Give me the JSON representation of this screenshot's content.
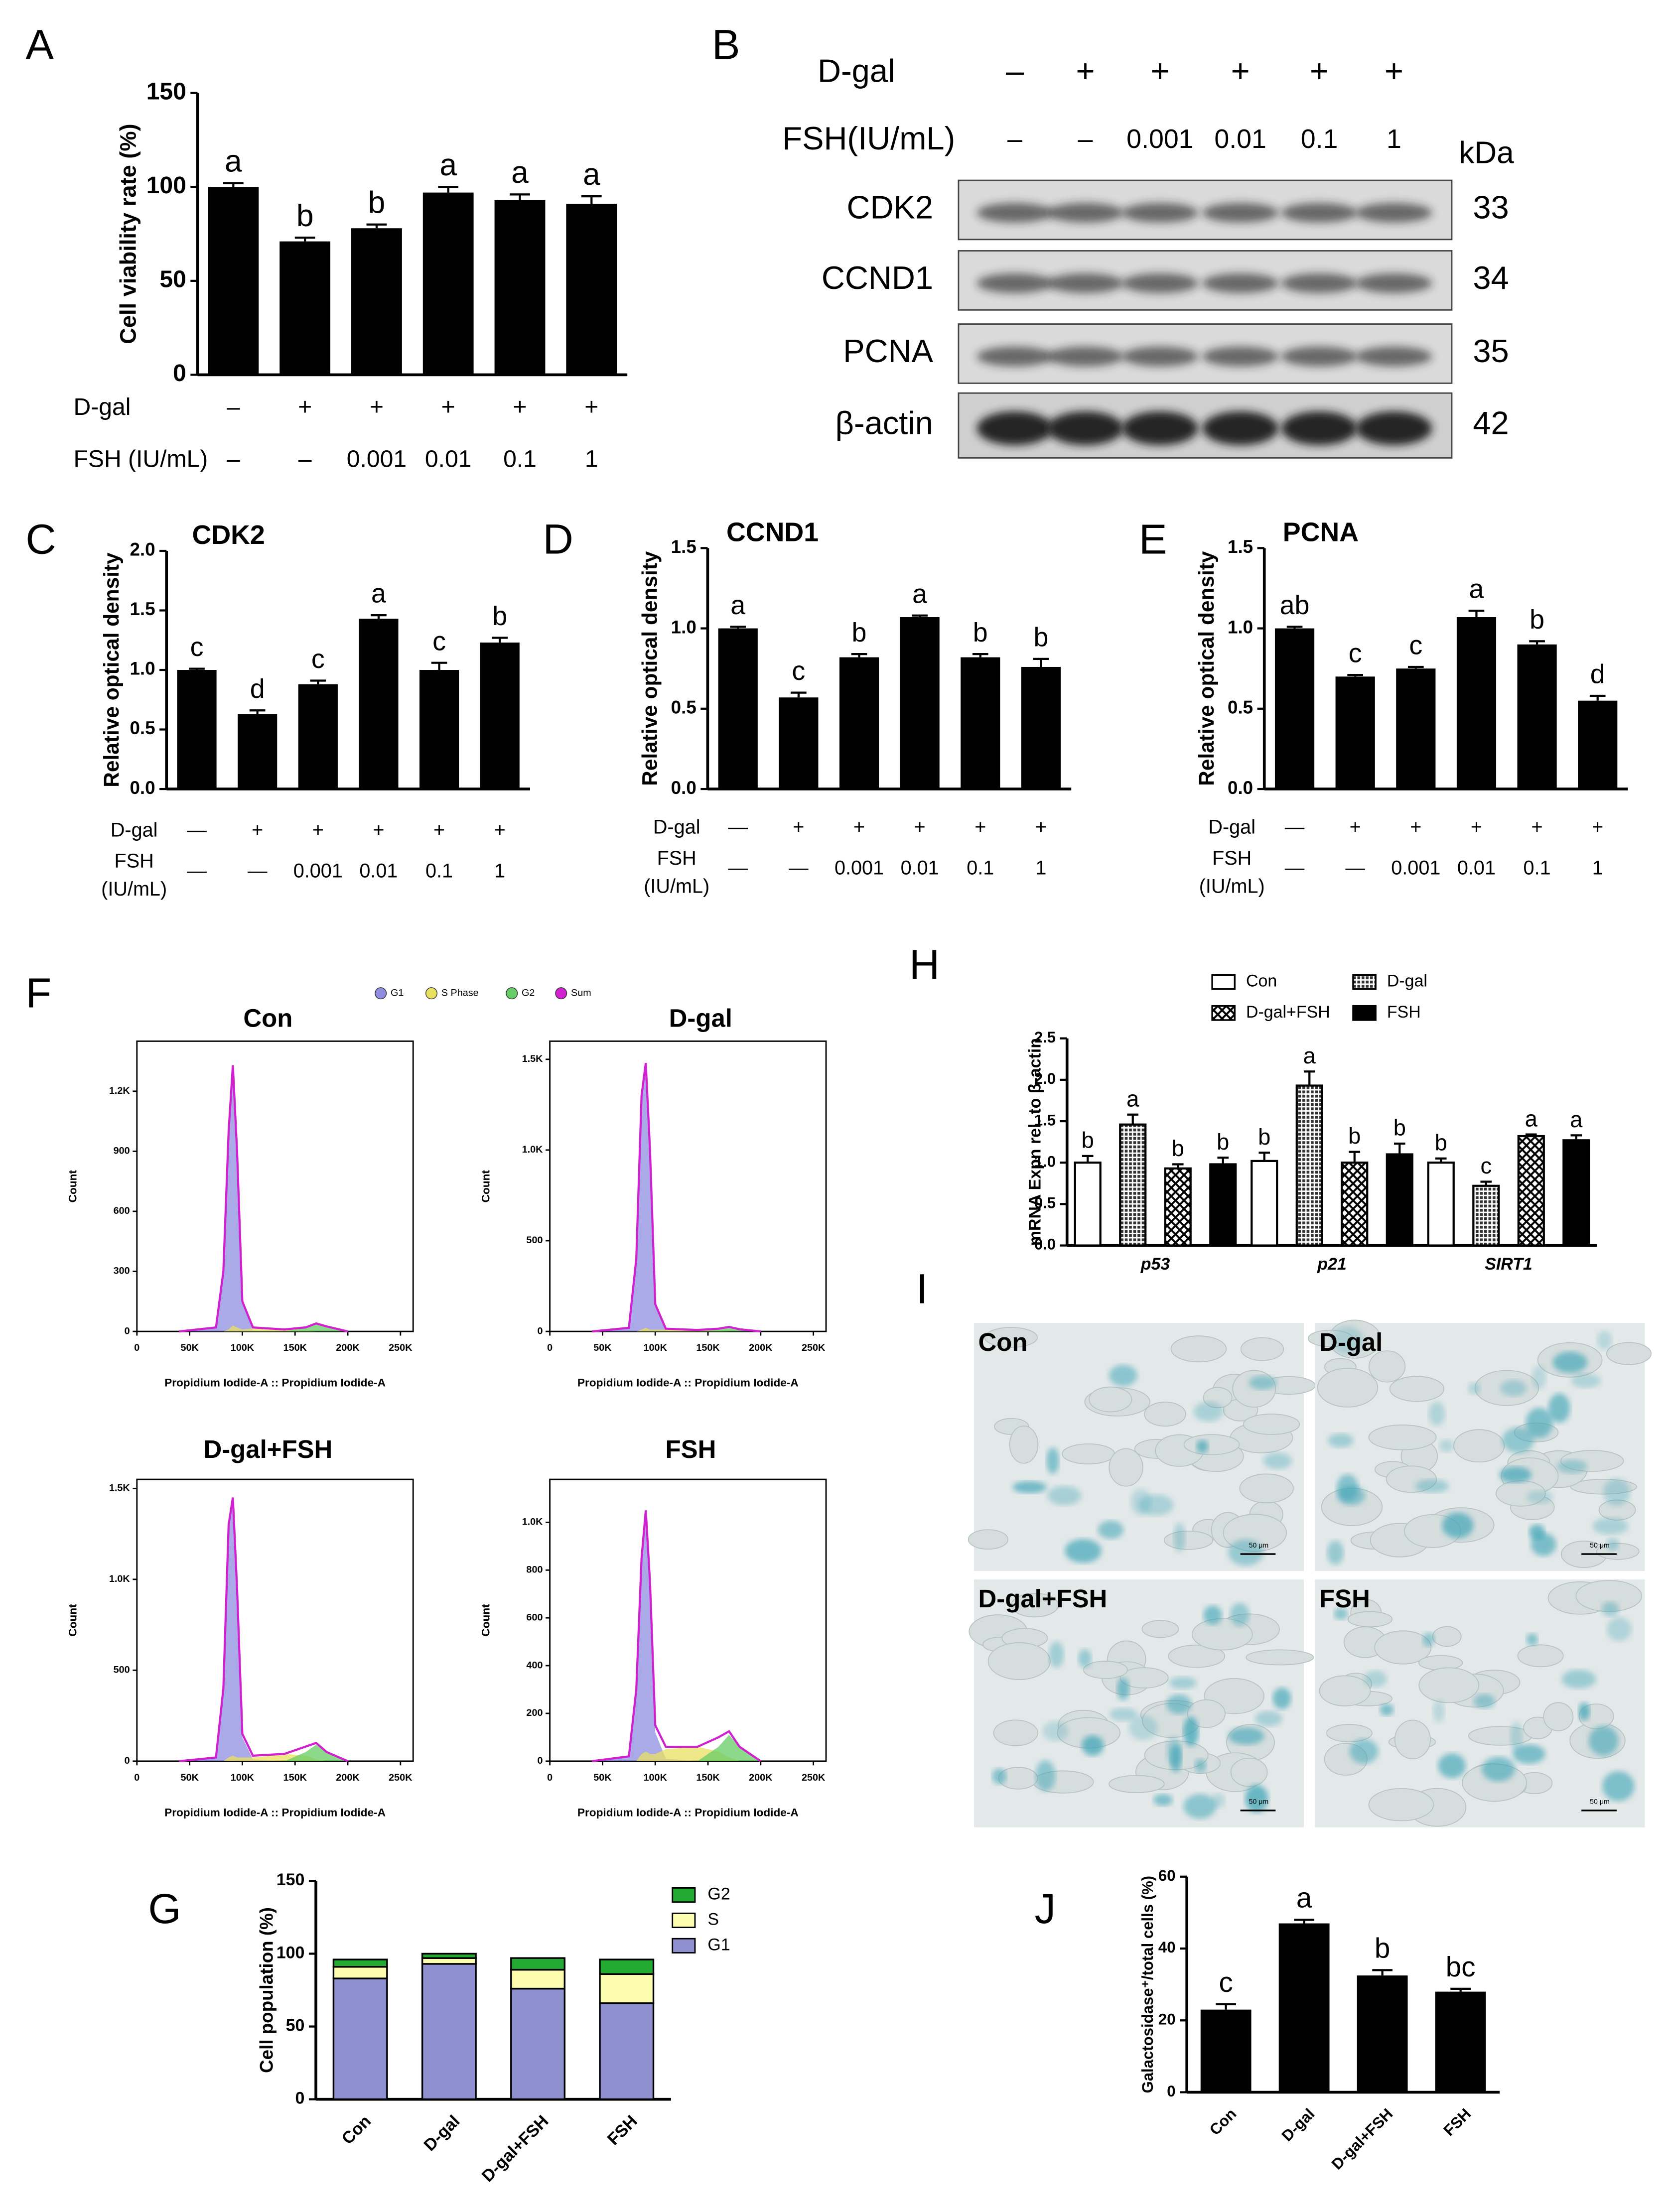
{
  "panel_labels": [
    "A",
    "B",
    "C",
    "D",
    "E",
    "F",
    "G",
    "H",
    "I",
    "J"
  ],
  "western_blot": {
    "rows": [
      {
        "label": "D-gal",
        "values": [
          "–",
          "+",
          "+",
          "+",
          "+",
          "+"
        ]
      },
      {
        "label": "FSH(IU/mL)",
        "values": [
          "–",
          "–",
          "0.001",
          "0.01",
          "0.1",
          "1"
        ]
      }
    ],
    "unit": "kDa",
    "bands": [
      {
        "name": "CDK2",
        "kda": 33
      },
      {
        "name": "CCND1",
        "kda": 34
      },
      {
        "name": "PCNA",
        "kda": 35
      },
      {
        "name": "β-actin",
        "kda": 42
      }
    ]
  },
  "micrographs": {
    "labels": [
      "Con",
      "D-gal",
      "D-gal+FSH",
      "FSH"
    ],
    "scale_bar": "50 μm"
  },
  "chart_data": [
    {
      "type": "bar",
      "y_label": "Cell viability rate (%)",
      "color": "#000000",
      "values": [
        100,
        71,
        78,
        97,
        93,
        91
      ],
      "errors": [
        2,
        2,
        2,
        3,
        3,
        4
      ],
      "letters": [
        "a",
        "b",
        "b",
        "a",
        "a",
        "a"
      ],
      "ylim": [
        0,
        150
      ],
      "yticks": [
        0,
        50,
        100,
        150
      ],
      "condition_rows": [
        {
          "label": [
            "D-gal"
          ],
          "values": [
            "–",
            "+",
            "+",
            "+",
            "+",
            "+"
          ]
        },
        {
          "label": [
            "FSH (IU/mL)"
          ],
          "values": [
            "–",
            "–",
            "0.001",
            "0.01",
            "0.1",
            "1"
          ]
        }
      ]
    },
    {
      "type": "bar",
      "title": "CDK2",
      "y_label": "Relative optical density",
      "color": "#000000",
      "values": [
        1.0,
        0.63,
        0.88,
        1.43,
        1.0,
        1.23
      ],
      "errors": [
        0.01,
        0.03,
        0.03,
        0.03,
        0.06,
        0.04
      ],
      "letters": [
        "c",
        "d",
        "c",
        "a",
        "c",
        "b"
      ],
      "ylim": [
        0,
        2
      ],
      "yticks": [
        {
          "value": 0,
          "label": "0.0"
        },
        0.5,
        {
          "value": 1,
          "label": "1.0"
        },
        1.5,
        {
          "value": 2,
          "label": "2.0"
        }
      ],
      "condition_rows": [
        {
          "label": [
            "D-gal"
          ],
          "values": [
            "—",
            "+",
            "+",
            "+",
            "+",
            "+"
          ]
        },
        {
          "label": [
            "FSH",
            "(IU/mL)"
          ],
          "values": [
            "—",
            "—",
            "0.001",
            "0.01",
            "0.1",
            "1"
          ]
        }
      ]
    },
    {
      "type": "bar",
      "title": "CCND1",
      "y_label": "Relative optical density",
      "color": "#000000",
      "values": [
        1.0,
        0.57,
        0.82,
        1.07,
        0.82,
        0.76
      ],
      "errors": [
        0.01,
        0.03,
        0.02,
        0.01,
        0.02,
        0.05
      ],
      "letters": [
        "a",
        "c",
        "b",
        "a",
        "b",
        "b"
      ],
      "ylim": [
        0,
        1.5
      ],
      "yticks": [
        {
          "value": 0,
          "label": "0.0"
        },
        0.5,
        {
          "value": 1,
          "label": "1.0"
        },
        1.5
      ],
      "condition_rows": [
        {
          "label": [
            "D-gal"
          ],
          "values": [
            "—",
            "+",
            "+",
            "+",
            "+",
            "+"
          ]
        },
        {
          "label": [
            "FSH",
            "(IU/mL)"
          ],
          "values": [
            "—",
            "—",
            "0.001",
            "0.01",
            "0.1",
            "1"
          ]
        }
      ]
    },
    {
      "type": "bar",
      "title": "PCNA",
      "y_label": "Relative optical density",
      "color": "#000000",
      "values": [
        1.0,
        0.7,
        0.75,
        1.07,
        0.9,
        0.55
      ],
      "errors": [
        0.01,
        0.01,
        0.01,
        0.04,
        0.02,
        0.03
      ],
      "letters": [
        "ab",
        "c",
        "c",
        "a",
        "b",
        "d"
      ],
      "ylim": [
        0,
        1.5
      ],
      "yticks": [
        {
          "value": 0,
          "label": "0.0"
        },
        0.5,
        {
          "value": 1,
          "label": "1.0"
        },
        1.5
      ],
      "condition_rows": [
        {
          "label": [
            "D-gal"
          ],
          "values": [
            "—",
            "+",
            "+",
            "+",
            "+",
            "+"
          ]
        },
        {
          "label": [
            "FSH",
            "(IU/mL)"
          ],
          "values": [
            "—",
            "—",
            "0.001",
            "0.01",
            "0.1",
            "1"
          ]
        }
      ]
    },
    {
      "type": "flow-histogram",
      "title": "Con",
      "x_label": "Propidium Iodide-A :: Propidium Iodide-A",
      "y_label": "Count",
      "x": [
        40000,
        75000,
        82000,
        87000,
        91000,
        95000,
        100000,
        110000,
        140000,
        160000,
        170000,
        180000,
        200000
      ],
      "series": [
        {
          "name": "G1",
          "color": "#8e8ee0",
          "mark": "area",
          "values": [
            0,
            20,
            300,
            1000,
            1300,
            880,
            140,
            5,
            0,
            0,
            0,
            0,
            0
          ]
        },
        {
          "name": "S Phase",
          "color": "#e8e060",
          "mark": "area",
          "values": [
            0,
            0,
            0,
            10,
            30,
            20,
            10,
            15,
            10,
            5,
            0,
            0,
            0
          ]
        },
        {
          "name": "G2",
          "color": "#66cc66",
          "mark": "area",
          "values": [
            0,
            0,
            0,
            0,
            0,
            0,
            0,
            0,
            0,
            20,
            40,
            25,
            0
          ]
        },
        {
          "name": "Sum",
          "color": "#d020d0",
          "mark": "line",
          "values": [
            0,
            20,
            300,
            1000,
            1330,
            900,
            150,
            20,
            10,
            20,
            40,
            25,
            0
          ]
        }
      ],
      "xlim": [
        0,
        262000
      ],
      "xticks": [
        0,
        {
          "value": 50000,
          "label": "50K"
        },
        {
          "value": 100000,
          "label": "100K"
        },
        {
          "value": 150000,
          "label": "150K"
        },
        {
          "value": 200000,
          "label": "200K"
        },
        {
          "value": 250000,
          "label": "250K"
        }
      ],
      "ylim": [
        0,
        1450
      ],
      "yticks": [
        0,
        300,
        600,
        900,
        {
          "value": 1200,
          "label": "1.2K"
        }
      ]
    },
    {
      "type": "flow-histogram",
      "title": "D-gal",
      "x_label": "Propidium Iodide-A :: Propidium Iodide-A",
      "y_label": "Count",
      "x": [
        40000,
        75000,
        82000,
        87000,
        91000,
        95000,
        100000,
        110000,
        140000,
        160000,
        170000,
        180000,
        200000
      ],
      "series": [
        {
          "name": "G1",
          "color": "#8e8ee0",
          "mark": "area",
          "values": [
            0,
            20,
            400,
            1290,
            1460,
            990,
            140,
            5,
            0,
            0,
            0,
            0,
            0
          ]
        },
        {
          "name": "S Phase",
          "color": "#e8e060",
          "mark": "area",
          "values": [
            0,
            0,
            0,
            10,
            20,
            10,
            10,
            10,
            8,
            5,
            0,
            0,
            0
          ]
        },
        {
          "name": "G2",
          "color": "#66cc66",
          "mark": "area",
          "values": [
            0,
            0,
            0,
            0,
            0,
            0,
            0,
            0,
            0,
            10,
            25,
            12,
            0
          ]
        },
        {
          "name": "Sum",
          "color": "#d020d0",
          "mark": "line",
          "values": [
            0,
            20,
            400,
            1300,
            1480,
            1000,
            150,
            15,
            8,
            15,
            25,
            12,
            0
          ]
        }
      ],
      "xlim": [
        0,
        262000
      ],
      "xticks": [
        0,
        {
          "value": 50000,
          "label": "50K"
        },
        {
          "value": 100000,
          "label": "100K"
        },
        {
          "value": 150000,
          "label": "150K"
        },
        {
          "value": 200000,
          "label": "200K"
        },
        {
          "value": 250000,
          "label": "250K"
        }
      ],
      "ylim": [
        0,
        1600
      ],
      "yticks": [
        0,
        500,
        {
          "value": 1000,
          "label": "1.0K"
        },
        {
          "value": 1500,
          "label": "1.5K"
        }
      ]
    },
    {
      "type": "flow-histogram",
      "title": "D-gal+FSH",
      "x_label": "Propidium Iodide-A :: Propidium Iodide-A",
      "y_label": "Count",
      "x": [
        40000,
        75000,
        82000,
        87000,
        91000,
        95000,
        100000,
        110000,
        140000,
        160000,
        170000,
        180000,
        200000
      ],
      "series": [
        {
          "name": "G1",
          "color": "#8e8ee0",
          "mark": "area",
          "values": [
            0,
            20,
            400,
            1280,
            1420,
            930,
            130,
            10,
            0,
            0,
            0,
            0,
            0
          ]
        },
        {
          "name": "S Phase",
          "color": "#e8e060",
          "mark": "area",
          "values": [
            0,
            0,
            0,
            20,
            30,
            20,
            20,
            20,
            40,
            30,
            10,
            0,
            0
          ]
        },
        {
          "name": "G2",
          "color": "#66cc66",
          "mark": "area",
          "values": [
            0,
            0,
            0,
            0,
            0,
            0,
            0,
            0,
            0,
            50,
            90,
            50,
            0
          ]
        },
        {
          "name": "Sum",
          "color": "#d020d0",
          "mark": "line",
          "values": [
            0,
            20,
            400,
            1300,
            1450,
            950,
            150,
            30,
            40,
            80,
            100,
            50,
            0
          ]
        }
      ],
      "xlim": [
        0,
        262000
      ],
      "xticks": [
        0,
        {
          "value": 50000,
          "label": "50K"
        },
        {
          "value": 100000,
          "label": "100K"
        },
        {
          "value": 150000,
          "label": "150K"
        },
        {
          "value": 200000,
          "label": "200K"
        },
        {
          "value": 250000,
          "label": "250K"
        }
      ],
      "ylim": [
        0,
        1550
      ],
      "yticks": [
        0,
        500,
        {
          "value": 1000,
          "label": "1.0K"
        },
        {
          "value": 1500,
          "label": "1.5K"
        }
      ]
    },
    {
      "type": "flow-histogram",
      "title": "FSH",
      "x_label": "Propidium Iodide-A :: Propidium Iodide-A",
      "y_label": "Count",
      "x": [
        40000,
        75000,
        82000,
        87000,
        91000,
        95000,
        100000,
        110000,
        140000,
        160000,
        170000,
        180000,
        200000
      ],
      "series": [
        {
          "name": "G1",
          "color": "#8e8ee0",
          "mark": "area",
          "values": [
            0,
            20,
            300,
            820,
            1010,
            720,
            120,
            10,
            0,
            0,
            0,
            0,
            0
          ]
        },
        {
          "name": "S Phase",
          "color": "#e8e060",
          "mark": "area",
          "values": [
            0,
            0,
            0,
            30,
            40,
            30,
            30,
            50,
            60,
            40,
            15,
            0,
            0
          ]
        },
        {
          "name": "G2",
          "color": "#66cc66",
          "mark": "area",
          "values": [
            0,
            0,
            0,
            0,
            0,
            0,
            0,
            0,
            0,
            60,
            110,
            60,
            0
          ]
        },
        {
          "name": "Sum",
          "color": "#d020d0",
          "mark": "line",
          "values": [
            0,
            20,
            300,
            850,
            1050,
            750,
            150,
            60,
            60,
            100,
            125,
            60,
            0
          ]
        }
      ],
      "xlim": [
        0,
        262000
      ],
      "xticks": [
        0,
        {
          "value": 50000,
          "label": "50K"
        },
        {
          "value": 100000,
          "label": "100K"
        },
        {
          "value": 150000,
          "label": "150K"
        },
        {
          "value": 200000,
          "label": "200K"
        },
        {
          "value": 250000,
          "label": "250K"
        }
      ],
      "ylim": [
        0,
        1180
      ],
      "yticks": [
        0,
        200,
        400,
        600,
        800,
        {
          "value": 1000,
          "label": "1.0K"
        }
      ]
    },
    {
      "type": "stacked-bar",
      "y_label": "Cell population (%)",
      "categories": [
        "Con",
        "D-gal",
        "D-gal+FSH",
        "FSH"
      ],
      "series": [
        {
          "name": "G1",
          "color": "#8f90d0",
          "values": [
            83,
            93,
            76,
            66
          ]
        },
        {
          "name": "S",
          "color": "#fdfdb0",
          "values": [
            8,
            4,
            13,
            20
          ]
        },
        {
          "name": "G2",
          "color": "#22aa33",
          "values": [
            5,
            3,
            8,
            10
          ]
        }
      ],
      "ylim": [
        0,
        150
      ],
      "yticks": [
        0,
        50,
        100,
        150
      ]
    },
    {
      "type": "grouped-bar",
      "y_label": "mRNA  Expn rel. to β-actin",
      "categories": [
        "p53",
        "p21",
        "SIRT1"
      ],
      "series": [
        {
          "name": "Con",
          "color": "#ffffff",
          "values": [
            1.0,
            1.02,
            1.0
          ],
          "errors": [
            0.08,
            0.1,
            0.05
          ],
          "letters": [
            "b",
            "b",
            "b"
          ]
        },
        {
          "name": "D-gal",
          "color": "#555555",
          "pattern": "hatch",
          "values": [
            1.46,
            1.93,
            0.72
          ],
          "errors": [
            0.12,
            0.17,
            0.05
          ],
          "letters": [
            "a",
            "a",
            "c"
          ]
        },
        {
          "name": "D-gal+FSH",
          "color": "#ffffff",
          "pattern": "checker",
          "values": [
            0.93,
            1.0,
            1.32
          ],
          "errors": [
            0.05,
            0.13,
            0.02
          ],
          "letters": [
            "b",
            "b",
            "a"
          ]
        },
        {
          "name": "FSH",
          "color": "#000000",
          "values": [
            0.98,
            1.1,
            1.27
          ],
          "errors": [
            0.08,
            0.13,
            0.06
          ],
          "letters": [
            "b",
            "b",
            "a"
          ]
        }
      ],
      "ylim": [
        0,
        2.5
      ],
      "yticks": [
        {
          "value": 0,
          "label": "0.0"
        },
        0.5,
        {
          "value": 1,
          "label": "1.0"
        },
        1.5,
        {
          "value": 2,
          "label": "2.0"
        },
        2.5
      ]
    },
    {
      "type": "bar",
      "y_label": "Galactosidase⁺/total cells (%)",
      "color": "#000000",
      "categories": [
        "Con",
        "D-gal",
        "D-gal+FSH",
        "FSH"
      ],
      "values": [
        23,
        47,
        32.5,
        28
      ],
      "errors": [
        1.5,
        1,
        1.5,
        0.8
      ],
      "letters": [
        "c",
        "a",
        "b",
        "bc"
      ],
      "ylim": [
        0,
        60
      ],
      "yticks": [
        0,
        20,
        40,
        60
      ]
    }
  ]
}
